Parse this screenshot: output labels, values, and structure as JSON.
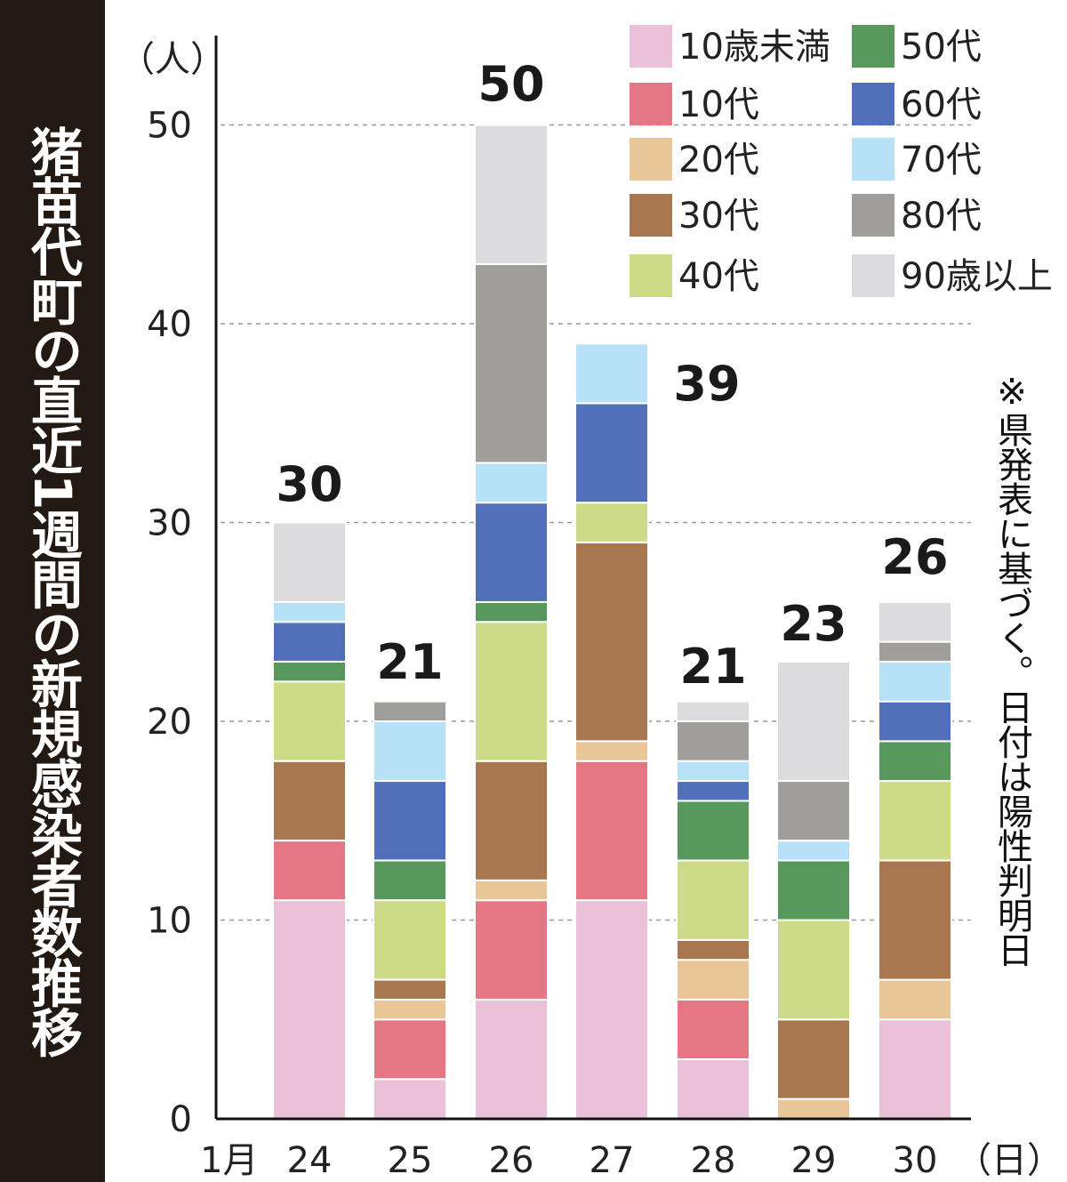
{
  "chart_data": {
    "type": "bar",
    "stacked": true,
    "title": "猪苗代町の直近1週間の新規感染者数推移",
    "ylabel": "（人）",
    "xlabel": "（日）",
    "x_prefix": "1月",
    "ylim": [
      0,
      50
    ],
    "yticks": [
      0,
      10,
      20,
      30,
      40,
      50
    ],
    "grid": "horizontal dashed",
    "legend": "top-right",
    "note": "※県発表に基づく。日付は陽性判明日",
    "categories": [
      "24",
      "25",
      "26",
      "27",
      "28",
      "29",
      "30"
    ],
    "totals": [
      30,
      21,
      50,
      39,
      21,
      23,
      26
    ],
    "series": [
      {
        "name": "10歳未満",
        "color": "#eac1d8",
        "values": [
          11,
          2,
          6,
          11,
          3,
          0,
          5
        ]
      },
      {
        "name": "10代",
        "color": "#e57785",
        "values": [
          3,
          3,
          5,
          7,
          3,
          0,
          0
        ]
      },
      {
        "name": "20代",
        "color": "#e9c698",
        "values": [
          0,
          1,
          1,
          1,
          2,
          1,
          2
        ]
      },
      {
        "name": "30代",
        "color": "#a87750",
        "values": [
          4,
          1,
          6,
          10,
          1,
          4,
          6
        ]
      },
      {
        "name": "40代",
        "color": "#cdda88",
        "values": [
          4,
          4,
          7,
          2,
          4,
          5,
          4
        ]
      },
      {
        "name": "50代",
        "color": "#58985d",
        "values": [
          1,
          2,
          1,
          0,
          3,
          3,
          2
        ]
      },
      {
        "name": "60代",
        "color": "#5170b9",
        "values": [
          2,
          4,
          5,
          5,
          1,
          0,
          2
        ]
      },
      {
        "name": "70代",
        "color": "#b7e1f7",
        "values": [
          1,
          3,
          2,
          3,
          1,
          1,
          2
        ]
      },
      {
        "name": "80代",
        "color": "#a09e9b",
        "values": [
          0,
          1,
          10,
          0,
          2,
          3,
          1
        ]
      },
      {
        "name": "90歳以上",
        "color": "#dcdcde",
        "values": [
          4,
          0,
          7,
          0,
          1,
          6,
          2
        ]
      }
    ]
  }
}
